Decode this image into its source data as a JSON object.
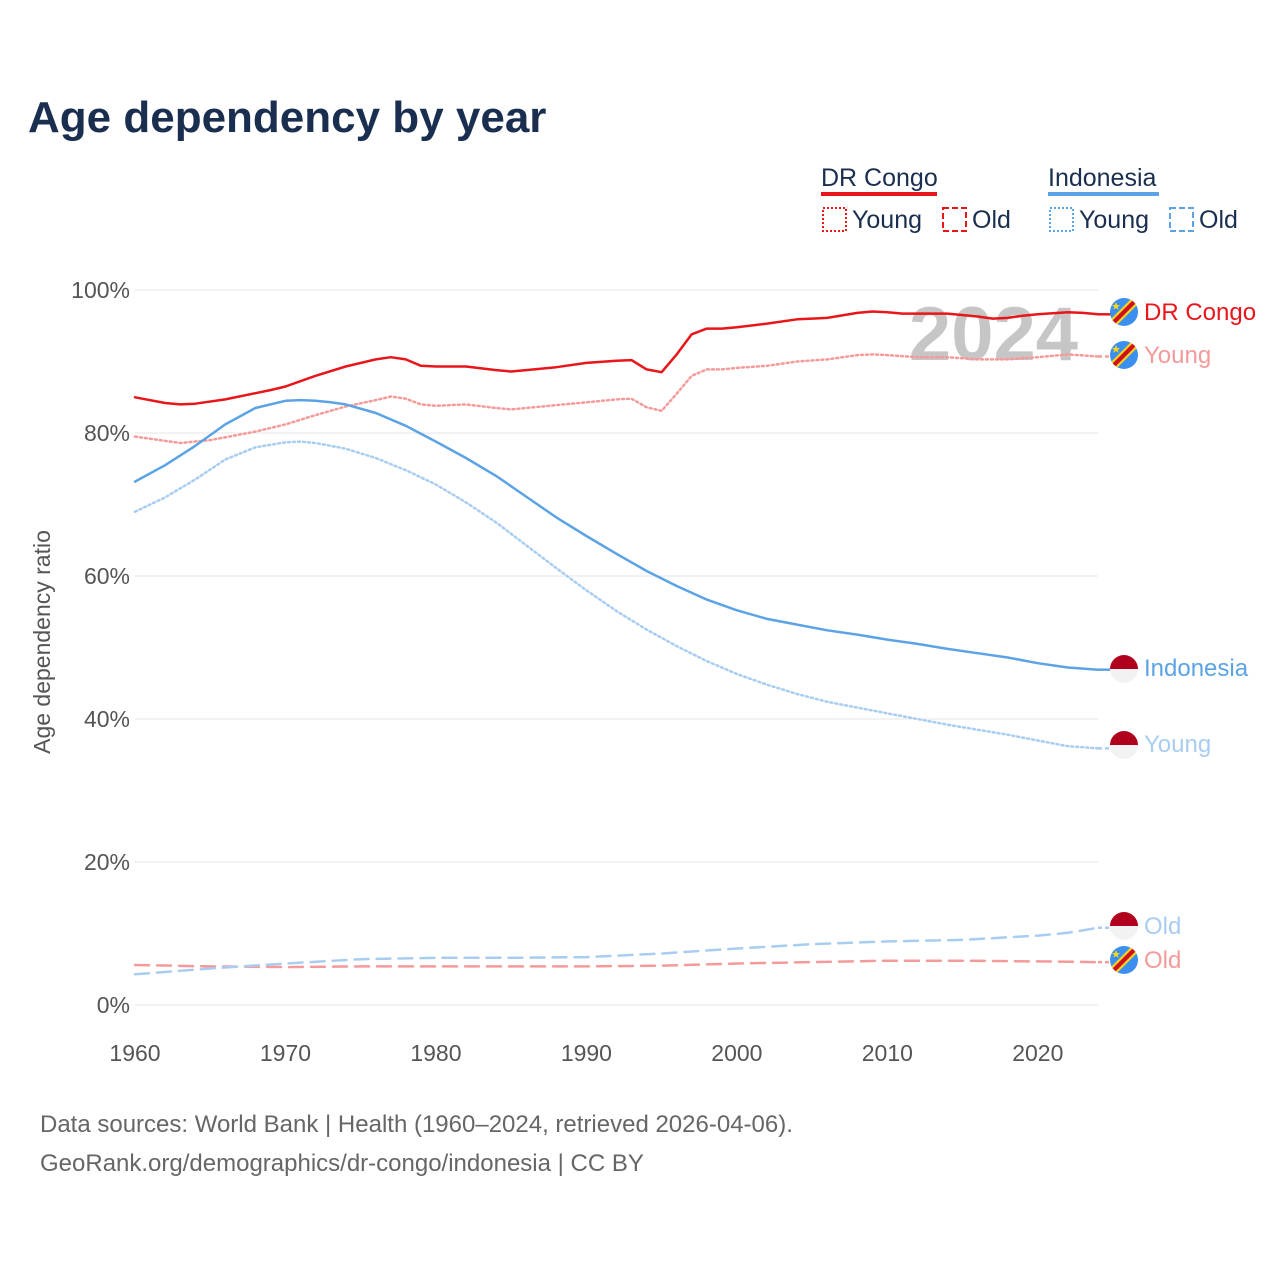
{
  "title": "Age dependency by year",
  "legend": {
    "country_a": {
      "name": "DR Congo",
      "young": "Young",
      "old": "Old"
    },
    "country_b": {
      "name": "Indonesia",
      "young": "Young",
      "old": "Old"
    }
  },
  "current_year_label": "2024",
  "end_labels": {
    "drc_total": "DR Congo",
    "drc_young": "Young",
    "idn_total": "Indonesia",
    "idn_young": "Young",
    "idn_old": "Old",
    "drc_old": "Old"
  },
  "colors": {
    "drc": "#e8161b",
    "drc_light": "#f59a9a",
    "idn": "#5ca3e6",
    "idn_light": "#a9cdf0",
    "title": "#1a2e4f"
  },
  "source": {
    "line1": "Data sources: World Bank | Health (1960–2024, retrieved 2026-04-06).",
    "line2": "GeoRank.org/demographics/dr-congo/indonesia | CC BY"
  },
  "chart_data": {
    "type": "line",
    "title": "Age dependency by year",
    "xlabel": "",
    "ylabel": "Age dependency ratio",
    "xlim": [
      1960,
      2024
    ],
    "ylim": [
      0,
      100
    ],
    "x_ticks": [
      "1960",
      "1970",
      "1980",
      "1990",
      "2000",
      "2010",
      "2020"
    ],
    "y_ticks": [
      "0%",
      "20%",
      "40%",
      "60%",
      "80%",
      "100%"
    ],
    "series": [
      {
        "name": "DR Congo",
        "style": "solid",
        "x": [
          1960,
          1962,
          1963,
          1964,
          1966,
          1969,
          1970,
          1972,
          1974,
          1976,
          1977,
          1978,
          1979,
          1980,
          1982,
          1984,
          1985,
          1986,
          1988,
          1990,
          1992,
          1993,
          1994,
          1995,
          1996,
          1997,
          1998,
          1999,
          2000,
          2002,
          2004,
          2005,
          2006,
          2008,
          2009,
          2010,
          2011,
          2012,
          2014,
          2016,
          2017,
          2018,
          2019,
          2020,
          2022,
          2023,
          2024
        ],
        "values": [
          85.0,
          84.2,
          84.0,
          84.1,
          84.7,
          86.0,
          86.5,
          88.0,
          89.3,
          90.3,
          90.6,
          90.3,
          89.4,
          89.3,
          89.3,
          88.8,
          88.6,
          88.8,
          89.2,
          89.8,
          90.1,
          90.2,
          88.9,
          88.5,
          91.0,
          93.8,
          94.6,
          94.6,
          94.8,
          95.3,
          95.9,
          96.0,
          96.1,
          96.8,
          97.0,
          96.9,
          96.7,
          96.7,
          96.7,
          96.3,
          96.0,
          96.1,
          96.4,
          96.6,
          96.9,
          96.8,
          96.6
        ]
      },
      {
        "name": "DR Congo Young",
        "style": "dotted",
        "x": [
          1960,
          1963,
          1965,
          1968,
          1970,
          1972,
          1974,
          1976,
          1977,
          1978,
          1979,
          1980,
          1982,
          1984,
          1985,
          1986,
          1988,
          1990,
          1992,
          1993,
          1994,
          1995,
          1996,
          1997,
          1998,
          1999,
          2000,
          2002,
          2004,
          2006,
          2008,
          2009,
          2010,
          2012,
          2014,
          2016,
          2018,
          2020,
          2022,
          2024
        ],
        "values": [
          79.5,
          78.6,
          79.0,
          80.2,
          81.2,
          82.5,
          83.7,
          84.6,
          85.1,
          84.8,
          84.0,
          83.8,
          84.0,
          83.5,
          83.3,
          83.5,
          83.9,
          84.3,
          84.7,
          84.8,
          83.6,
          83.1,
          85.5,
          88.0,
          88.9,
          88.9,
          89.1,
          89.4,
          90.0,
          90.3,
          90.9,
          91.0,
          90.9,
          90.6,
          90.6,
          90.3,
          90.3,
          90.6,
          91.0,
          90.7
        ]
      },
      {
        "name": "DR Congo Old",
        "style": "dashed",
        "x": [
          1960,
          1965,
          1970,
          1975,
          1980,
          1985,
          1990,
          1995,
          2000,
          2005,
          2010,
          2015,
          2020,
          2024
        ],
        "values": [
          5.6,
          5.4,
          5.3,
          5.4,
          5.4,
          5.4,
          5.4,
          5.5,
          5.8,
          6.0,
          6.2,
          6.2,
          6.1,
          6.0
        ]
      },
      {
        "name": "Indonesia",
        "style": "solid",
        "x": [
          1960,
          1962,
          1964,
          1966,
          1968,
          1970,
          1971,
          1972,
          1973,
          1974,
          1976,
          1978,
          1980,
          1982,
          1984,
          1986,
          1988,
          1990,
          1992,
          1994,
          1996,
          1998,
          2000,
          2002,
          2004,
          2006,
          2008,
          2010,
          2012,
          2014,
          2016,
          2018,
          2020,
          2022,
          2024
        ],
        "values": [
          73.2,
          75.5,
          78.2,
          81.2,
          83.5,
          84.5,
          84.6,
          84.5,
          84.3,
          84.0,
          82.8,
          81.0,
          78.8,
          76.5,
          74.0,
          71.1,
          68.2,
          65.6,
          63.1,
          60.7,
          58.6,
          56.7,
          55.2,
          54.0,
          53.2,
          52.4,
          51.8,
          51.1,
          50.5,
          49.8,
          49.2,
          48.6,
          47.8,
          47.2,
          46.9
        ]
      },
      {
        "name": "Indonesia Young",
        "style": "dotted",
        "x": [
          1960,
          1962,
          1964,
          1966,
          1968,
          1970,
          1971,
          1972,
          1974,
          1976,
          1978,
          1980,
          1982,
          1984,
          1986,
          1988,
          1990,
          1992,
          1994,
          1996,
          1998,
          2000,
          2002,
          2004,
          2006,
          2008,
          2010,
          2012,
          2014,
          2016,
          2018,
          2020,
          2022,
          2024
        ],
        "values": [
          69.0,
          71.0,
          73.5,
          76.3,
          78.0,
          78.7,
          78.8,
          78.6,
          77.8,
          76.5,
          74.8,
          72.8,
          70.3,
          67.5,
          64.3,
          61.1,
          58.0,
          55.1,
          52.5,
          50.2,
          48.1,
          46.3,
          44.8,
          43.5,
          42.4,
          41.6,
          40.8,
          40.0,
          39.2,
          38.5,
          37.8,
          37.0,
          36.2,
          35.9
        ]
      },
      {
        "name": "Indonesia Old",
        "style": "dashed",
        "x": [
          1960,
          1965,
          1970,
          1975,
          1980,
          1985,
          1990,
          1995,
          2000,
          2005,
          2010,
          2015,
          2020,
          2022,
          2024
        ],
        "values": [
          4.3,
          5.1,
          5.8,
          6.4,
          6.6,
          6.6,
          6.7,
          7.2,
          7.9,
          8.5,
          8.9,
          9.1,
          9.7,
          10.1,
          10.8
        ]
      }
    ]
  }
}
